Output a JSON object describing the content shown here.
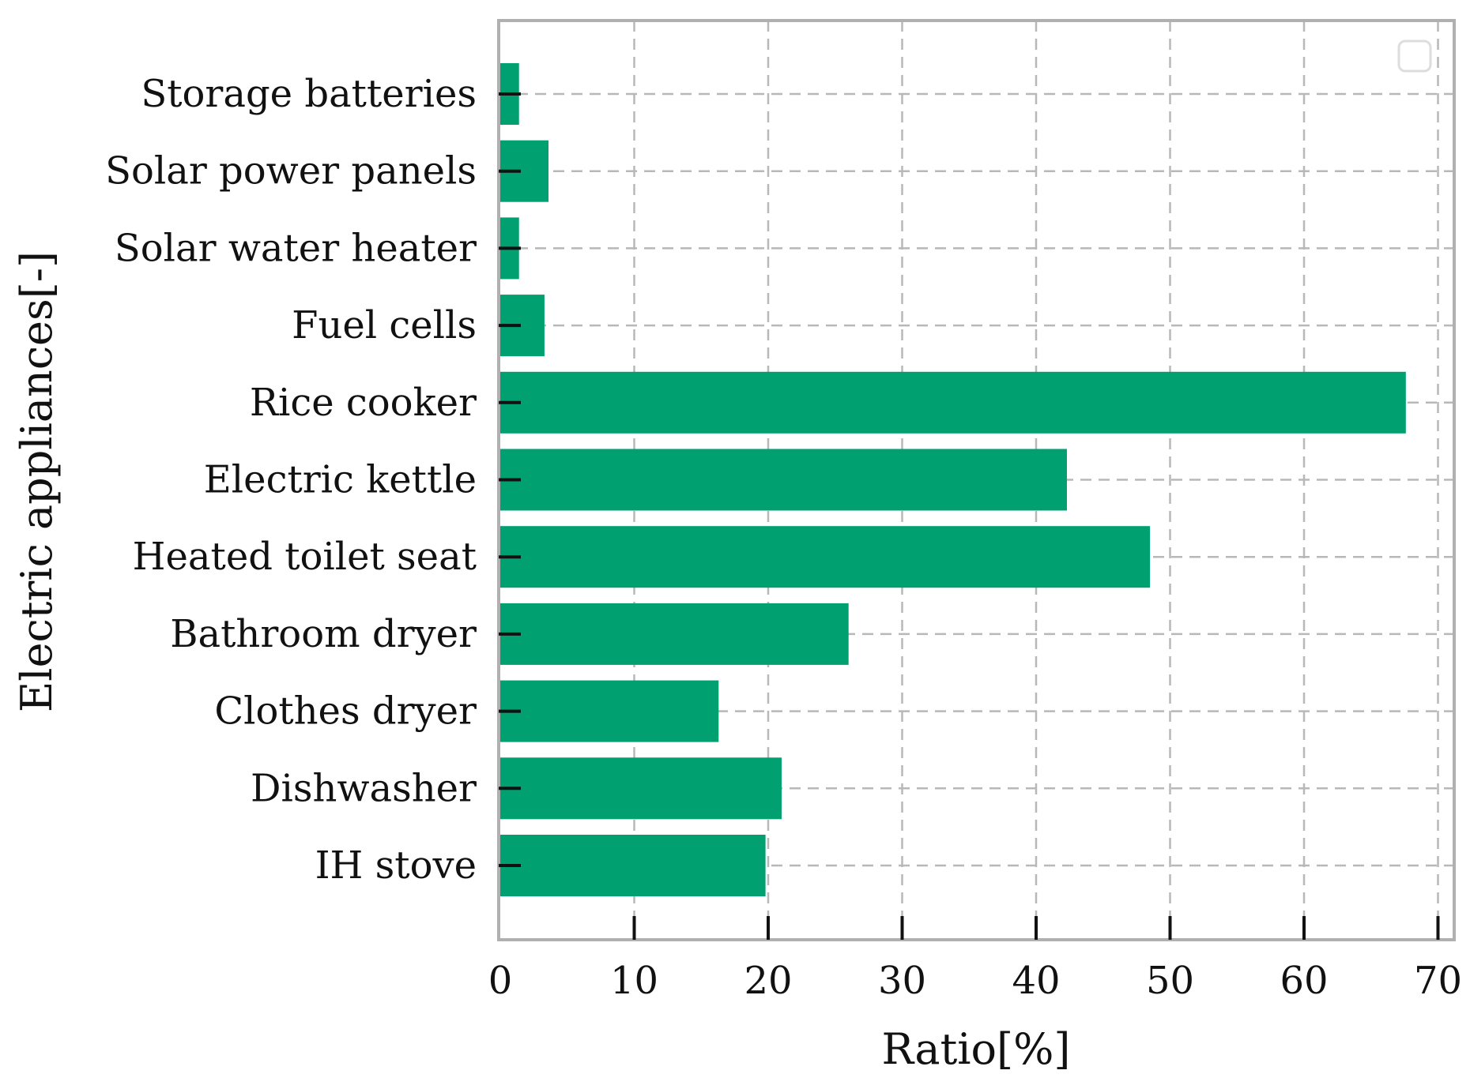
{
  "chart_data": {
    "type": "bar",
    "orientation": "horizontal",
    "title": "",
    "xlabel": "Ratio[%]",
    "ylabel": "Electric appliances[-]",
    "xlim": [
      0,
      70
    ],
    "xticks": [
      0,
      10,
      20,
      30,
      40,
      50,
      60,
      70
    ],
    "grid": true,
    "legend": "top-right (empty box)",
    "categories": [
      "Storage batteries",
      "Solar power panels",
      "Solar water heater",
      "Fuel cells",
      "Rice cooker",
      "Electric kettle",
      "Heated toilet seat",
      "Bathroom dryer",
      "Clothes dryer",
      "Dishwasher",
      "IH stove"
    ],
    "values": [
      1.4,
      3.6,
      1.4,
      3.3,
      67.6,
      42.3,
      48.5,
      26.0,
      16.3,
      21.0,
      19.8
    ],
    "colors": {
      "bar": "#00a070",
      "frame": "#b0b0b0",
      "grid": "#b8b8b8",
      "text": "#111111"
    }
  }
}
